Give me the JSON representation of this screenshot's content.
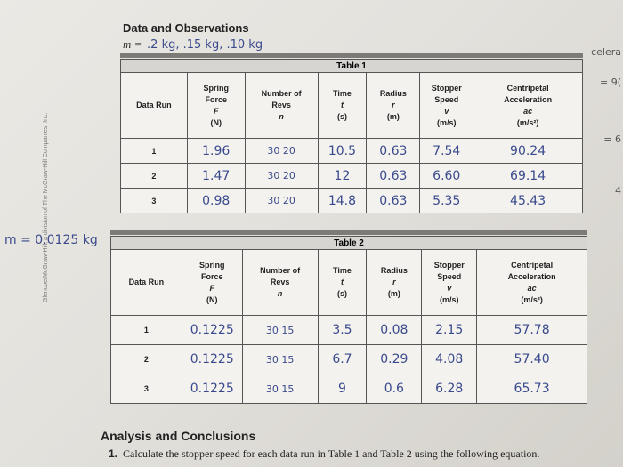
{
  "header": {
    "title": "Data and Observations",
    "mass_label": "m =",
    "mass_values": ".2 kg, .15 kg, .10 kg"
  },
  "margin_notes": {
    "left_mass": "m = 0.0125 kg",
    "right_1": "celera",
    "right_2": "= 9(",
    "right_3": "= 6",
    "right_4": "4",
    "vertical": "Glencoe/McGraw-Hill, a division of The McGraw-Hill Companies, Inc."
  },
  "columns": {
    "data_run": "Data Run",
    "force": [
      "Spring",
      "Force",
      "F",
      "(N)"
    ],
    "revs": [
      "Number of",
      "Revs",
      "n"
    ],
    "time": [
      "Time",
      "t",
      "(s)"
    ],
    "radius": [
      "Radius",
      "r",
      "(m)"
    ],
    "speed": [
      "Stopper",
      "Speed",
      "v",
      "(m/s)"
    ],
    "accel": [
      "Centripetal",
      "Acceleration",
      "ac",
      "(m/s²)"
    ]
  },
  "table1": {
    "caption": "Table 1",
    "rows": [
      {
        "run": "1",
        "force": "1.96",
        "revs": "30 20",
        "time": "10.5",
        "radius": "0.63",
        "speed": "7.54",
        "accel": "90.24"
      },
      {
        "run": "2",
        "force": "1.47",
        "revs": "30 20",
        "time": "12",
        "radius": "0.63",
        "speed": "6.60",
        "accel": "69.14"
      },
      {
        "run": "3",
        "force": "0.98",
        "revs": "30 20",
        "time": "14.8",
        "radius": "0.63",
        "speed": "5.35",
        "accel": "45.43"
      }
    ]
  },
  "table2": {
    "caption": "Table 2",
    "rows": [
      {
        "run": "1",
        "force": "0.1225",
        "revs": "30 15",
        "time": "3.5",
        "radius": "0.08",
        "speed": "2.15",
        "accel": "57.78"
      },
      {
        "run": "2",
        "force": "0.1225",
        "revs": "30 15",
        "time": "6.7",
        "radius": "0.29",
        "speed": "4.08",
        "accel": "57.40"
      },
      {
        "run": "3",
        "force": "0.1225",
        "revs": "30 15",
        "time": "9",
        "radius": "0.6",
        "speed": "6.28",
        "accel": "65.73"
      }
    ]
  },
  "analysis": {
    "heading": "Analysis and Conclusions",
    "q_number": "1.",
    "q_text": "Calculate the stopper speed for each data run in Table 1 and Table 2 using the following equation."
  }
}
